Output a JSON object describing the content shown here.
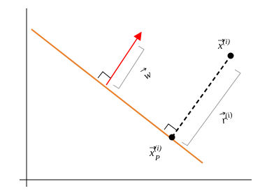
{
  "labels": {
    "w": {
      "base": "w"
    },
    "x": {
      "base": "x",
      "sup": "(i)"
    },
    "xp": {
      "base": "x",
      "sub": "P",
      "sup": "(i)"
    },
    "r": {
      "base": "r",
      "sup": "(i)"
    }
  }
}
